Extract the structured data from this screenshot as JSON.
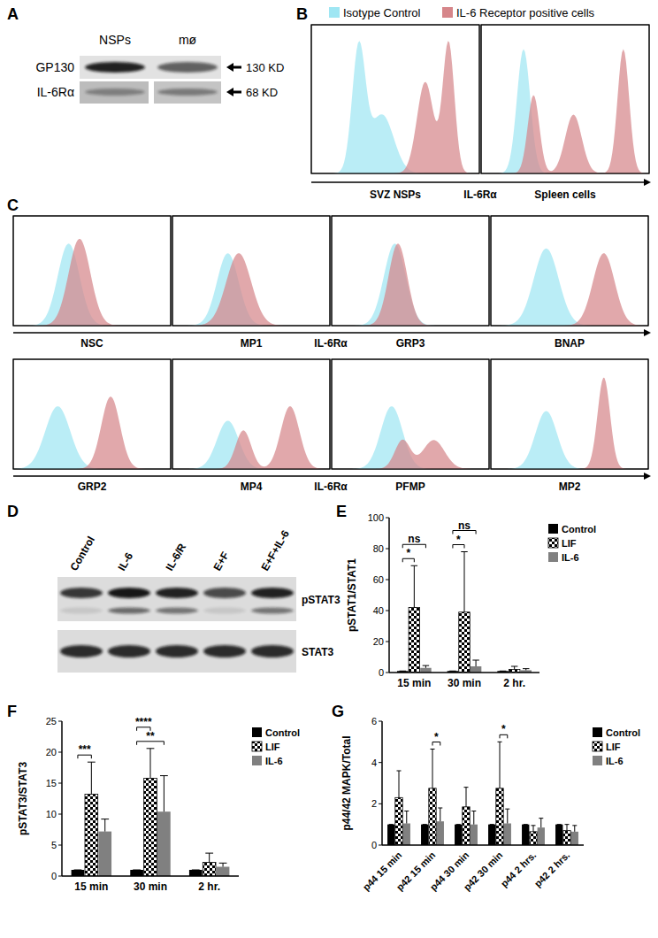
{
  "panel_a": {
    "label": "A",
    "lanes": [
      "NSPs",
      "mø"
    ],
    "rows": [
      {
        "label": "GP130",
        "size": "130 KD",
        "bands": [
          [
            0.9,
            0.6
          ]
        ]
      },
      {
        "label": "IL-6Rα",
        "size": "68 KD",
        "bands": [
          [
            0.35,
            0.4
          ]
        ]
      }
    ]
  },
  "panel_b": {
    "label": "B",
    "axis_label": "IL-6Rα",
    "legend": [
      {
        "name": "Isotype Control",
        "color": "#9fe6f3"
      },
      {
        "name": "IL-6 Receptor positive cells",
        "color": "#d6868a"
      }
    ],
    "histograms": [
      {
        "label": "SVZ NSPs",
        "isotype": [
          [
            0.28,
            0.04,
            0.95
          ],
          [
            0.42,
            0.07,
            0.45
          ]
        ],
        "receptor": [
          [
            0.68,
            0.05,
            0.7
          ],
          [
            0.82,
            0.035,
            1.0
          ]
        ]
      },
      {
        "label": "Spleen cells",
        "isotype": [
          [
            0.25,
            0.04,
            0.95
          ]
        ],
        "receptor": [
          [
            0.31,
            0.035,
            0.6
          ],
          [
            0.55,
            0.05,
            0.45
          ],
          [
            0.85,
            0.035,
            0.95
          ]
        ]
      }
    ]
  },
  "panel_c": {
    "label": "C",
    "axis_label": "IL-6Rα",
    "histograms": [
      {
        "label": "NSC",
        "isotype": [
          [
            0.35,
            0.07,
            0.85
          ]
        ],
        "receptor": [
          [
            0.42,
            0.07,
            0.9
          ]
        ]
      },
      {
        "label": "MP1",
        "isotype": [
          [
            0.35,
            0.07,
            0.75
          ]
        ],
        "receptor": [
          [
            0.42,
            0.08,
            0.75
          ]
        ]
      },
      {
        "label": "GRP3",
        "isotype": [
          [
            0.4,
            0.07,
            0.85
          ]
        ],
        "receptor": [
          [
            0.42,
            0.06,
            0.85
          ]
        ]
      },
      {
        "label": "BNAP",
        "isotype": [
          [
            0.35,
            0.08,
            0.8
          ]
        ],
        "receptor": [
          [
            0.72,
            0.07,
            0.75
          ]
        ]
      },
      {
        "label": "GRP2",
        "isotype": [
          [
            0.28,
            0.08,
            0.65
          ]
        ],
        "receptor": [
          [
            0.62,
            0.06,
            0.75
          ]
        ]
      },
      {
        "label": "MP4",
        "isotype": [
          [
            0.35,
            0.07,
            0.5
          ]
        ],
        "receptor": [
          [
            0.45,
            0.05,
            0.4
          ],
          [
            0.75,
            0.06,
            0.65
          ]
        ]
      },
      {
        "label": "PFMP",
        "isotype": [
          [
            0.38,
            0.07,
            0.65
          ]
        ],
        "receptor": [
          [
            0.45,
            0.05,
            0.3
          ],
          [
            0.65,
            0.07,
            0.3
          ]
        ]
      },
      {
        "label": "MP2",
        "isotype": [
          [
            0.35,
            0.07,
            0.6
          ]
        ],
        "receptor": [
          [
            0.72,
            0.04,
            0.95
          ]
        ]
      }
    ]
  },
  "panel_d": {
    "label": "D",
    "lanes": [
      "Control",
      "IL-6",
      "IL-6/R",
      "E+F",
      "E+F+IL-6"
    ],
    "rows": [
      {
        "label": "pSTAT3",
        "bands": [
          [
            0.8,
            0.95,
            0.9,
            0.7,
            0.9
          ],
          [
            0.1,
            0.55,
            0.5,
            0.1,
            0.5
          ]
        ]
      },
      {
        "label": "STAT3",
        "bands": [
          [
            0.85,
            0.85,
            0.85,
            0.85,
            0.85
          ]
        ]
      }
    ]
  },
  "chart_data": [
    {
      "type": "bar",
      "title": "E",
      "y_label": "pSTAT1/STAT1",
      "categories": [
        "15 min",
        "30 min",
        "2 hr."
      ],
      "series": [
        {
          "name": "Control",
          "color": "#000000",
          "values": [
            1,
            1,
            1
          ],
          "errors": [
            0,
            0,
            0
          ]
        },
        {
          "name": "LIF",
          "color": "#000000",
          "values": [
            42,
            39,
            2
          ],
          "errors": [
            27,
            39,
            2
          ]
        },
        {
          "name": "IL-6",
          "color": "#808080",
          "values": [
            3,
            4,
            1.5
          ],
          "errors": [
            1.5,
            4,
            1
          ]
        }
      ],
      "ylim": [
        0,
        100
      ],
      "yticks": [
        0,
        20,
        40,
        60,
        80,
        100
      ],
      "legend": "right",
      "annotations": [
        {
          "text": "*",
          "category": 0,
          "from": 0,
          "to": 1
        },
        {
          "text": "ns",
          "category": 0,
          "from": 0,
          "to": 2
        },
        {
          "text": "*",
          "category": 1,
          "from": 0,
          "to": 1
        },
        {
          "text": "ns",
          "category": 1,
          "from": 0,
          "to": 2
        }
      ]
    },
    {
      "type": "bar",
      "title": "F",
      "y_label": "pSTAT3/STAT3",
      "categories": [
        "15 min",
        "30 min",
        "2 hr."
      ],
      "series": [
        {
          "name": "Control",
          "color": "#000000",
          "values": [
            1,
            1,
            1
          ],
          "errors": [
            0,
            0,
            0
          ]
        },
        {
          "name": "LIF",
          "color": "#000000",
          "values": [
            13.2,
            15.8,
            2.2
          ],
          "errors": [
            5.2,
            4.8,
            1.5
          ]
        },
        {
          "name": "IL-6",
          "color": "#808080",
          "values": [
            7.2,
            10.4,
            1.5
          ],
          "errors": [
            2,
            5.8,
            0.6
          ]
        }
      ],
      "ylim": [
        0,
        25
      ],
      "yticks": [
        0,
        5,
        10,
        15,
        20,
        25
      ],
      "legend": "right",
      "annotations": [
        {
          "text": "***",
          "category": 0,
          "from": 0,
          "to": 1
        },
        {
          "text": "**",
          "category": 1,
          "from": 0,
          "to": 2
        },
        {
          "text": "****",
          "category": 1,
          "from": 0,
          "to": 1
        }
      ]
    },
    {
      "type": "bar",
      "title": "G",
      "y_label": "p44/42 MAPK/Total",
      "categories": [
        "p44 15 min",
        "p42 15 min",
        "p44 30 min",
        "p42 30 min",
        "p44 2 hrs.",
        "p42 2 hrs."
      ],
      "series": [
        {
          "name": "Control",
          "color": "#000000",
          "values": [
            1,
            1,
            1,
            1,
            1,
            1
          ],
          "errors": [
            0,
            0,
            0,
            0,
            0,
            0
          ]
        },
        {
          "name": "LIF",
          "color": "#000000",
          "values": [
            2.3,
            2.75,
            1.85,
            2.75,
            0.65,
            0.7
          ],
          "errors": [
            1.3,
            1.9,
            0.95,
            2.25,
            0.3,
            0.3
          ]
        },
        {
          "name": "IL-6",
          "color": "#808080",
          "values": [
            1.05,
            1.15,
            1.0,
            1.05,
            0.85,
            0.65
          ],
          "errors": [
            0.6,
            0.65,
            0.65,
            0.7,
            0.45,
            0.3
          ]
        }
      ],
      "ylim": [
        0,
        6
      ],
      "yticks": [
        0,
        2,
        4,
        6
      ],
      "legend": "right",
      "annotations": [
        {
          "text": "*",
          "category": 1,
          "from": 1,
          "to": 2
        },
        {
          "text": "*",
          "category": 3,
          "from": 1,
          "to": 2
        }
      ]
    }
  ]
}
